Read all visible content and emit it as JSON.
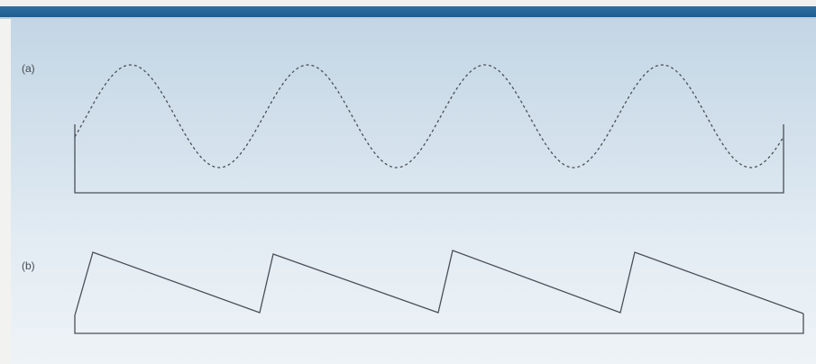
{
  "panels": {
    "a": {
      "label": "(a)"
    },
    "b": {
      "label": "(b)"
    }
  },
  "colors": {
    "header_rule": "#1d5c8f",
    "panel_background": "#d3e1ec",
    "line": "#4a4f56"
  },
  "waveforms": {
    "a": {
      "type": "sine",
      "style": "dashed",
      "cycles": 4
    },
    "b": {
      "type": "sawtooth",
      "style": "solid",
      "cycles": 4
    }
  }
}
